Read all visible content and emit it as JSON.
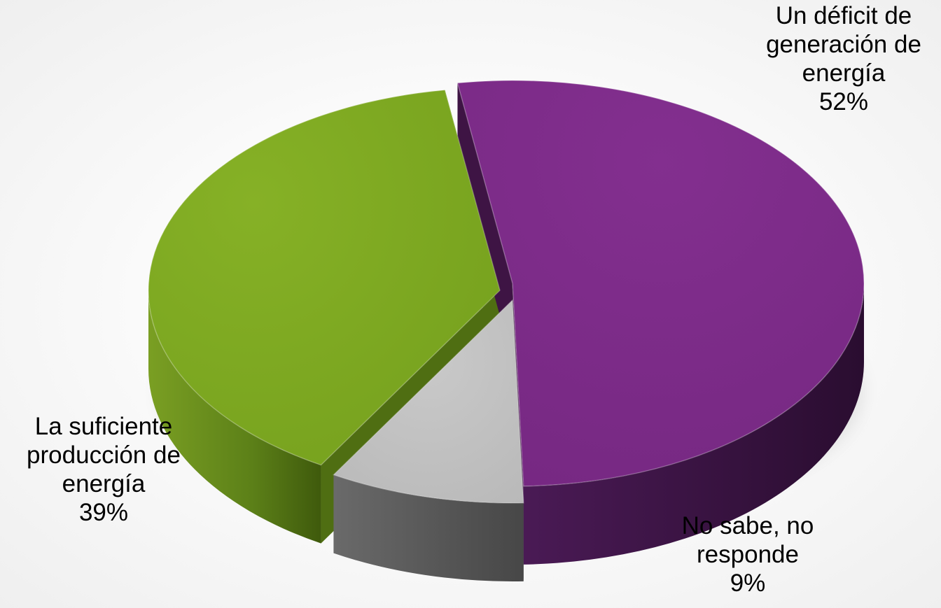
{
  "chart_data": {
    "type": "pie",
    "title": "",
    "slices": [
      {
        "key": "deficit",
        "label_lines": [
          "Un déficit de",
          "generación de",
          "energía"
        ],
        "percent_label": "52%",
        "value": 52,
        "color": "#7b2a86",
        "side_color": "#3e1444"
      },
      {
        "key": "nosabe",
        "label_lines": [
          "No sabe, no",
          "responde"
        ],
        "percent_label": "9%",
        "value": 9,
        "color": "#bfbfbf",
        "side_color": "#5a5a5a"
      },
      {
        "key": "suficiente",
        "label_lines": [
          "La suficiente",
          "producción de",
          "energía"
        ],
        "percent_label": "39%",
        "value": 39,
        "color": "#7da720",
        "side_color": "#4f6e12"
      }
    ],
    "legend": "none",
    "style": "3d-exploded"
  }
}
